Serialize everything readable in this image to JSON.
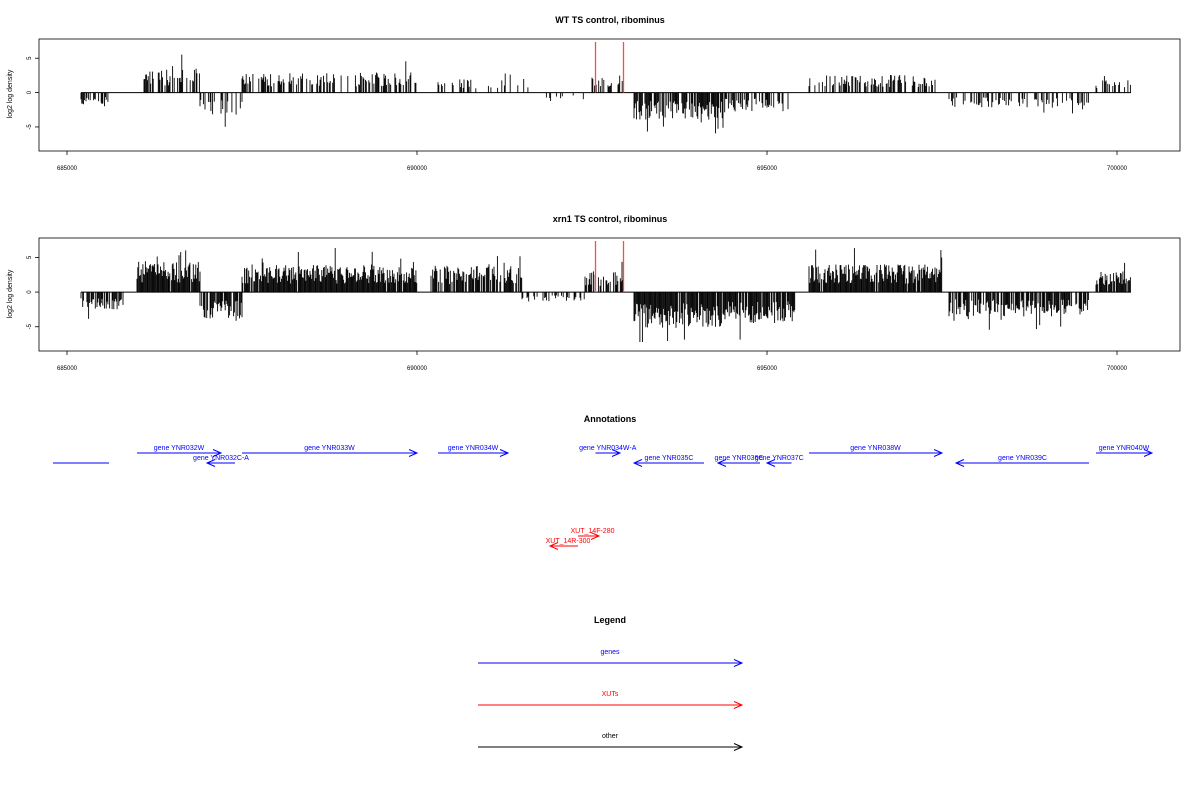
{
  "colors": {
    "gene": "#0000ff",
    "xut": "#ff0000",
    "other": "#000000",
    "marker": "#ff4a4a"
  },
  "chart_data": [
    {
      "type": "bar",
      "title": "WT TS control, ribominus",
      "ylabel": "log2 log density",
      "xlim": [
        684800,
        701600
      ],
      "ylim": [
        -8.5,
        7.8
      ],
      "xticks": [
        685000,
        690000,
        695000,
        700000
      ],
      "xtick_labels": [
        "685000",
        "690000",
        "695000",
        "700000"
      ],
      "yticks": [
        -5,
        0,
        5
      ],
      "ytick_labels": [
        "-5",
        "0",
        "5"
      ],
      "baseline_range": [
        685200,
        700200
      ],
      "markers": [
        692550,
        692950
      ],
      "regions": [
        {
          "start": 685200,
          "end": 685600,
          "sign": -1,
          "amp": 2.0,
          "density": 0.4,
          "seed": 11
        },
        {
          "start": 686100,
          "end": 686900,
          "sign": 1,
          "amp": 3.5,
          "density": 0.55,
          "seed": 12
        },
        {
          "start": 686900,
          "end": 687500,
          "sign": -1,
          "amp": 3.2,
          "density": 0.45,
          "seed": 13
        },
        {
          "start": 687500,
          "end": 690000,
          "sign": 1,
          "amp": 3.0,
          "density": 0.5,
          "seed": 14
        },
        {
          "start": 690300,
          "end": 691600,
          "sign": 1,
          "amp": 2.0,
          "density": 0.25,
          "seed": 15
        },
        {
          "start": 691800,
          "end": 692400,
          "sign": -1,
          "amp": 1.0,
          "density": 0.15,
          "seed": 16
        },
        {
          "start": 692500,
          "end": 692950,
          "sign": 1,
          "amp": 2.5,
          "density": 0.4,
          "seed": 17
        },
        {
          "start": 693100,
          "end": 694400,
          "sign": -1,
          "amp": 4.0,
          "density": 0.7,
          "seed": 18
        },
        {
          "start": 694400,
          "end": 695300,
          "sign": -1,
          "amp": 2.8,
          "density": 0.55,
          "seed": 19
        },
        {
          "start": 695600,
          "end": 697400,
          "sign": 1,
          "amp": 2.6,
          "density": 0.55,
          "seed": 20
        },
        {
          "start": 697600,
          "end": 699600,
          "sign": -1,
          "amp": 2.2,
          "density": 0.35,
          "seed": 21
        },
        {
          "start": 699700,
          "end": 700200,
          "sign": 1,
          "amp": 2.0,
          "density": 0.6,
          "seed": 22
        }
      ]
    },
    {
      "type": "bar",
      "title": "xrn1 TS control, ribominus",
      "ylabel": "log2 log density",
      "xlim": [
        684800,
        701600
      ],
      "ylim": [
        -8.5,
        7.8
      ],
      "xticks": [
        685000,
        690000,
        695000,
        700000
      ],
      "xtick_labels": [
        "685000",
        "690000",
        "695000",
        "700000"
      ],
      "yticks": [
        -5,
        0,
        5
      ],
      "ytick_labels": [
        "-5",
        "0",
        "5"
      ],
      "baseline_range": [
        685200,
        700200
      ],
      "markers": [
        692550,
        692950
      ],
      "regions": [
        {
          "start": 685200,
          "end": 685800,
          "sign": -1,
          "amp": 2.5,
          "density": 0.7,
          "seed": 31
        },
        {
          "start": 686000,
          "end": 686900,
          "sign": 1,
          "amp": 4.5,
          "density": 0.95,
          "seed": 32
        },
        {
          "start": 686900,
          "end": 687500,
          "sign": -1,
          "amp": 4.0,
          "density": 0.8,
          "seed": 33
        },
        {
          "start": 687500,
          "end": 690000,
          "sign": 1,
          "amp": 4.0,
          "density": 0.95,
          "seed": 34
        },
        {
          "start": 690200,
          "end": 691500,
          "sign": 1,
          "amp": 3.8,
          "density": 0.8,
          "seed": 35
        },
        {
          "start": 691500,
          "end": 692400,
          "sign": -1,
          "amp": 1.5,
          "density": 0.3,
          "seed": 36
        },
        {
          "start": 692400,
          "end": 692950,
          "sign": 1,
          "amp": 3.0,
          "density": 0.6,
          "seed": 37
        },
        {
          "start": 693100,
          "end": 694400,
          "sign": -1,
          "amp": 5.2,
          "density": 0.95,
          "seed": 38
        },
        {
          "start": 694400,
          "end": 695400,
          "sign": -1,
          "amp": 4.5,
          "density": 0.9,
          "seed": 39
        },
        {
          "start": 695600,
          "end": 697500,
          "sign": 1,
          "amp": 4.0,
          "density": 0.95,
          "seed": 40
        },
        {
          "start": 697600,
          "end": 699600,
          "sign": -1,
          "amp": 3.5,
          "density": 0.75,
          "seed": 41
        },
        {
          "start": 699700,
          "end": 700200,
          "sign": 1,
          "amp": 3.0,
          "density": 0.9,
          "seed": 42
        }
      ]
    }
  ],
  "annotations": {
    "title": "Annotations",
    "genes": [
      {
        "label": "",
        "start": 684800,
        "end": 685600,
        "dir": "none",
        "row": 2
      },
      {
        "label": "gene YNR032W",
        "start": 686000,
        "end": 687200,
        "dir": "right",
        "row": 1
      },
      {
        "label": "gene YNR032C-A",
        "start": 687000,
        "end": 687400,
        "dir": "left",
        "row": 2
      },
      {
        "label": "gene YNR033W",
        "start": 687500,
        "end": 690000,
        "dir": "right",
        "row": 1
      },
      {
        "label": "gene YNR034W",
        "start": 690300,
        "end": 691300,
        "dir": "right",
        "row": 1
      },
      {
        "label": "gene YNR034W-A",
        "start": 692550,
        "end": 692900,
        "dir": "right",
        "row": 1
      },
      {
        "label": "gene YNR035C",
        "start": 693100,
        "end": 694100,
        "dir": "left",
        "row": 2
      },
      {
        "label": "gene YNR036C",
        "start": 694300,
        "end": 694900,
        "dir": "left",
        "row": 2
      },
      {
        "label": "gene YNR037C",
        "start": 695000,
        "end": 695350,
        "dir": "left",
        "row": 2
      },
      {
        "label": "gene YNR038W",
        "start": 695600,
        "end": 697500,
        "dir": "right",
        "row": 1
      },
      {
        "label": "gene YNR039C",
        "start": 697700,
        "end": 699600,
        "dir": "left",
        "row": 2
      },
      {
        "label": "gene YNR040W",
        "start": 699700,
        "end": 700500,
        "dir": "right",
        "row": 1
      }
    ],
    "xuts": [
      {
        "label": "XUT_14F-280",
        "start": 692300,
        "end": 692600,
        "dir": "right",
        "row": 1
      },
      {
        "label": "XUT_14R-300",
        "start": 691900,
        "end": 692300,
        "dir": "left",
        "row": 2
      }
    ]
  },
  "legend": {
    "title": "Legend",
    "items": [
      {
        "label": "genes",
        "kind": "gene"
      },
      {
        "label": "XUTs",
        "kind": "xut"
      },
      {
        "label": "other",
        "kind": "other"
      }
    ]
  }
}
